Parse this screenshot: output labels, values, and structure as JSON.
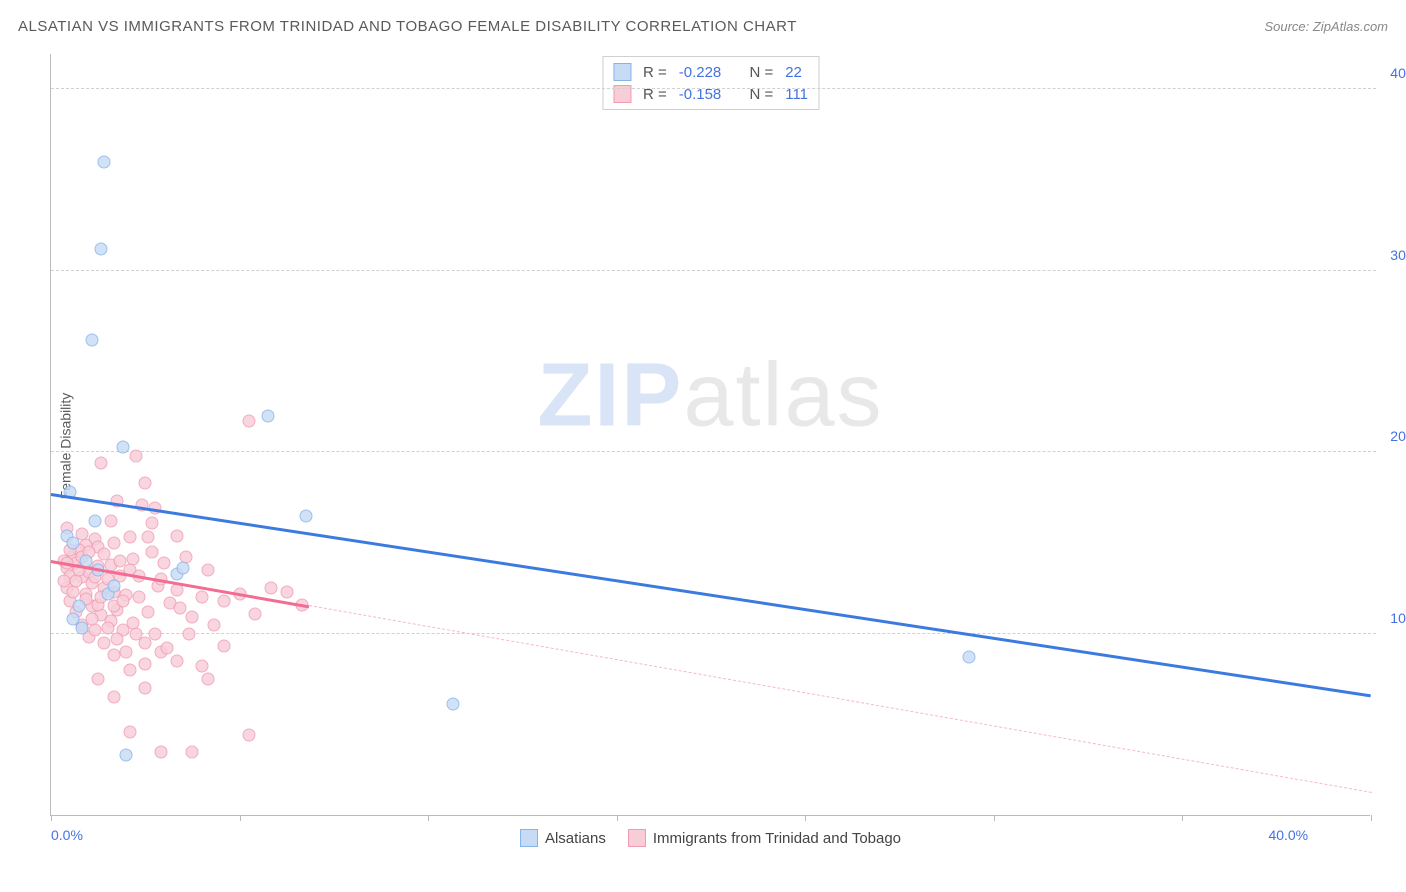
{
  "title": "ALSATIAN VS IMMIGRANTS FROM TRINIDAD AND TOBAGO FEMALE DISABILITY CORRELATION CHART",
  "source": "Source: ZipAtlas.com",
  "ylabel": "Female Disability",
  "watermark": {
    "zip": "ZIP",
    "atlas": "atlas"
  },
  "axes": {
    "xmin": 0,
    "xmax": 42,
    "ymin": 0,
    "ymax": 42,
    "yticks": [
      {
        "v": 10,
        "label": "10.0%"
      },
      {
        "v": 20,
        "label": "20.0%"
      },
      {
        "v": 30,
        "label": "30.0%"
      },
      {
        "v": 40,
        "label": "40.0%"
      }
    ],
    "xtick_values": [
      0,
      6,
      12,
      18,
      24,
      30,
      36,
      42
    ],
    "xtick_labels": [
      {
        "v": 0,
        "label": "0.0%"
      },
      {
        "v": 40,
        "label": "40.0%"
      }
    ],
    "grid_color": "#d0d0d0"
  },
  "series": [
    {
      "id": "alsatians",
      "name": "Alsatians",
      "color_fill": "#c7dbf5",
      "color_stroke": "#86b3ea",
      "marker_size": 13,
      "R": "-0.228",
      "N": "22",
      "trend": {
        "x1": 0,
        "y1": 17.7,
        "x2": 42,
        "y2": 6.6,
        "width": 3,
        "color": "#3d7ae0",
        "dash": "solid"
      },
      "points": [
        [
          1.7,
          36.0
        ],
        [
          1.6,
          31.2
        ],
        [
          1.3,
          26.2
        ],
        [
          2.3,
          20.3
        ],
        [
          6.9,
          22.0
        ],
        [
          0.6,
          17.8
        ],
        [
          0.5,
          15.4
        ],
        [
          0.7,
          15.0
        ],
        [
          8.1,
          16.5
        ],
        [
          1.5,
          13.5
        ],
        [
          4.0,
          13.3
        ],
        [
          4.2,
          13.6
        ],
        [
          1.8,
          12.2
        ],
        [
          0.7,
          10.8
        ],
        [
          1.0,
          10.3
        ],
        [
          0.9,
          11.5
        ],
        [
          2.4,
          3.3
        ],
        [
          12.8,
          6.1
        ],
        [
          29.2,
          8.7
        ],
        [
          1.1,
          14.0
        ],
        [
          1.4,
          16.2
        ],
        [
          2.0,
          12.6
        ]
      ]
    },
    {
      "id": "trinidad",
      "name": "Immigrants from Trinidad and Tobago",
      "color_fill": "#f7cdd8",
      "color_stroke": "#f19ab2",
      "marker_size": 13,
      "R": "-0.158",
      "N": "111",
      "trend": {
        "x1": 0,
        "y1": 14.0,
        "x2": 8.2,
        "y2": 11.5,
        "width": 3,
        "color": "#f26c93",
        "dash": "solid"
      },
      "trend_ext": {
        "x1": 8.2,
        "y1": 11.5,
        "x2": 42,
        "y2": 1.2,
        "width": 1,
        "color": "#f4b9c8",
        "dash": "dashed"
      },
      "points": [
        [
          6.3,
          21.7
        ],
        [
          2.7,
          19.8
        ],
        [
          1.6,
          19.4
        ],
        [
          3.0,
          18.3
        ],
        [
          2.9,
          17.1
        ],
        [
          2.1,
          17.3
        ],
        [
          1.9,
          16.2
        ],
        [
          3.3,
          16.9
        ],
        [
          3.1,
          15.3
        ],
        [
          1.4,
          15.2
        ],
        [
          1.1,
          14.9
        ],
        [
          2.6,
          14.1
        ],
        [
          0.7,
          14.3
        ],
        [
          0.4,
          14.0
        ],
        [
          0.5,
          13.6
        ],
        [
          0.6,
          13.2
        ],
        [
          0.8,
          13.9
        ],
        [
          1.0,
          13.1
        ],
        [
          1.2,
          13.4
        ],
        [
          1.3,
          12.8
        ],
        [
          1.5,
          13.7
        ],
        [
          1.7,
          12.5
        ],
        [
          1.8,
          13.0
        ],
        [
          2.0,
          12.3
        ],
        [
          2.2,
          13.2
        ],
        [
          2.4,
          12.1
        ],
        [
          2.5,
          13.5
        ],
        [
          2.8,
          12.0
        ],
        [
          3.2,
          14.5
        ],
        [
          3.4,
          12.6
        ],
        [
          3.6,
          13.9
        ],
        [
          3.8,
          11.7
        ],
        [
          4.0,
          12.4
        ],
        [
          4.3,
          14.2
        ],
        [
          4.5,
          10.9
        ],
        [
          4.8,
          12.0
        ],
        [
          5.0,
          13.5
        ],
        [
          5.2,
          10.5
        ],
        [
          5.5,
          11.8
        ],
        [
          6.0,
          12.2
        ],
        [
          6.5,
          11.1
        ],
        [
          7.0,
          12.5
        ],
        [
          7.5,
          12.3
        ],
        [
          8.0,
          11.6
        ],
        [
          0.9,
          14.6
        ],
        [
          1.1,
          12.2
        ],
        [
          1.3,
          11.5
        ],
        [
          1.6,
          11.0
        ],
        [
          1.9,
          10.7
        ],
        [
          2.1,
          11.3
        ],
        [
          2.3,
          10.2
        ],
        [
          2.7,
          10.0
        ],
        [
          3.0,
          9.5
        ],
        [
          3.5,
          9.0
        ],
        [
          4.0,
          8.5
        ],
        [
          4.8,
          8.2
        ],
        [
          5.5,
          9.3
        ],
        [
          0.5,
          12.5
        ],
        [
          0.6,
          11.8
        ],
        [
          0.8,
          11.2
        ],
        [
          1.0,
          10.5
        ],
        [
          1.2,
          9.8
        ],
        [
          1.4,
          10.2
        ],
        [
          1.7,
          9.5
        ],
        [
          2.0,
          8.8
        ],
        [
          2.5,
          8.0
        ],
        [
          3.0,
          8.3
        ],
        [
          1.0,
          15.5
        ],
        [
          1.5,
          14.8
        ],
        [
          2.0,
          15.0
        ],
        [
          2.5,
          15.3
        ],
        [
          0.4,
          12.9
        ],
        [
          0.5,
          13.9
        ],
        [
          0.6,
          14.6
        ],
        [
          0.7,
          12.3
        ],
        [
          0.8,
          12.9
        ],
        [
          0.9,
          13.5
        ],
        [
          1.0,
          14.2
        ],
        [
          1.1,
          11.9
        ],
        [
          1.2,
          14.5
        ],
        [
          1.3,
          10.8
        ],
        [
          1.4,
          13.1
        ],
        [
          1.5,
          11.6
        ],
        [
          1.6,
          12.0
        ],
        [
          1.7,
          14.4
        ],
        [
          1.8,
          10.3
        ],
        [
          1.9,
          13.8
        ],
        [
          2.0,
          11.5
        ],
        [
          2.1,
          9.7
        ],
        [
          2.2,
          14.0
        ],
        [
          2.3,
          11.8
        ],
        [
          2.4,
          9.0
        ],
        [
          2.6,
          10.6
        ],
        [
          2.8,
          13.2
        ],
        [
          3.1,
          11.2
        ],
        [
          3.3,
          10.0
        ],
        [
          3.5,
          13.0
        ],
        [
          3.7,
          9.2
        ],
        [
          4.1,
          11.4
        ],
        [
          4.4,
          10.0
        ],
        [
          3.5,
          3.5
        ],
        [
          4.5,
          3.5
        ],
        [
          6.3,
          4.4
        ],
        [
          2.5,
          4.6
        ],
        [
          2.0,
          6.5
        ],
        [
          3.0,
          7.0
        ],
        [
          1.5,
          7.5
        ],
        [
          5.0,
          7.5
        ],
        [
          0.5,
          15.8
        ],
        [
          4.0,
          15.4
        ],
        [
          3.2,
          16.1
        ]
      ]
    }
  ],
  "legend_labels": {
    "R": "R =",
    "N": "N ="
  }
}
